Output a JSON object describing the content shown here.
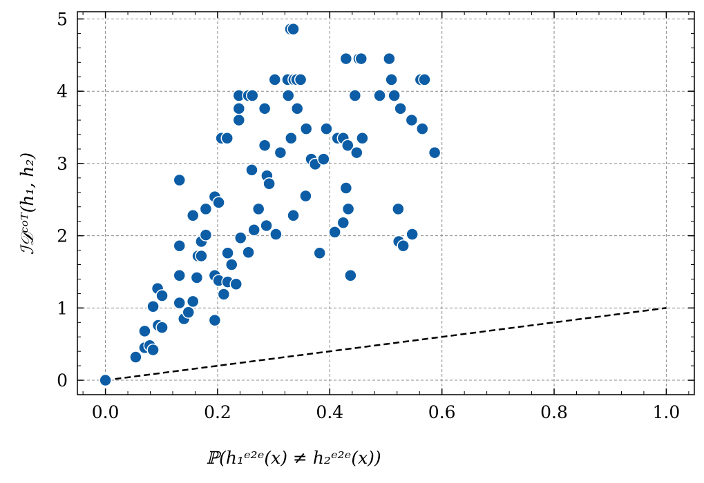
{
  "chart_data": {
    "type": "scatter",
    "title": "",
    "xlabel": "ℙ(h₁ᵉ²ᵉ(x) ≠ h₂ᵉ²ᵉ(x))",
    "ylabel": "ℐ𝒟ᶜᵒᵀ(h₁, h₂)",
    "xlim": [
      -0.05,
      1.05
    ],
    "ylim": [
      -0.2,
      5.1
    ],
    "xticks": [
      "0.0",
      "0.2",
      "0.4",
      "0.6",
      "0.8",
      "1.0"
    ],
    "yticks": [
      "0",
      "1",
      "2",
      "3",
      "4",
      "5"
    ],
    "grid": true,
    "point_color": "#0C5DA5",
    "reference_line": {
      "style": "dashed",
      "color": "#000000",
      "x": [
        0,
        1
      ],
      "y": [
        0,
        1
      ]
    },
    "points": [
      [
        0.0,
        0.0
      ],
      [
        0.054,
        0.32
      ],
      [
        0.07,
        0.68
      ],
      [
        0.07,
        0.45
      ],
      [
        0.079,
        0.48
      ],
      [
        0.085,
        0.42
      ],
      [
        0.085,
        1.02
      ],
      [
        0.093,
        1.27
      ],
      [
        0.094,
        0.76
      ],
      [
        0.101,
        0.73
      ],
      [
        0.101,
        1.17
      ],
      [
        0.132,
        2.77
      ],
      [
        0.132,
        1.86
      ],
      [
        0.132,
        1.45
      ],
      [
        0.132,
        1.07
      ],
      [
        0.14,
        0.85
      ],
      [
        0.148,
        0.94
      ],
      [
        0.156,
        1.09
      ],
      [
        0.156,
        2.28
      ],
      [
        0.163,
        1.42
      ],
      [
        0.165,
        1.72
      ],
      [
        0.171,
        1.72
      ],
      [
        0.171,
        1.92
      ],
      [
        0.179,
        2.37
      ],
      [
        0.179,
        2.01
      ],
      [
        0.195,
        0.83
      ],
      [
        0.195,
        1.45
      ],
      [
        0.195,
        2.54
      ],
      [
        0.202,
        2.46
      ],
      [
        0.202,
        1.38
      ],
      [
        0.207,
        3.35
      ],
      [
        0.211,
        1.19
      ],
      [
        0.217,
        3.35
      ],
      [
        0.218,
        1.76
      ],
      [
        0.218,
        1.36
      ],
      [
        0.225,
        1.6
      ],
      [
        0.233,
        1.33
      ],
      [
        0.238,
        3.94
      ],
      [
        0.238,
        3.76
      ],
      [
        0.238,
        3.6
      ],
      [
        0.241,
        1.97
      ],
      [
        0.255,
        1.77
      ],
      [
        0.255,
        3.94
      ],
      [
        0.262,
        3.94
      ],
      [
        0.261,
        2.91
      ],
      [
        0.265,
        2.08
      ],
      [
        0.273,
        2.37
      ],
      [
        0.284,
        3.76
      ],
      [
        0.284,
        3.25
      ],
      [
        0.287,
        2.14
      ],
      [
        0.288,
        2.83
      ],
      [
        0.292,
        2.72
      ],
      [
        0.302,
        4.16
      ],
      [
        0.304,
        2.02
      ],
      [
        0.312,
        3.15
      ],
      [
        0.325,
        4.16
      ],
      [
        0.326,
        3.94
      ],
      [
        0.331,
        3.35
      ],
      [
        0.33,
        4.86
      ],
      [
        0.335,
        4.86
      ],
      [
        0.335,
        2.28
      ],
      [
        0.336,
        4.16
      ],
      [
        0.341,
        4.16
      ],
      [
        0.342,
        3.76
      ],
      [
        0.348,
        4.16
      ],
      [
        0.357,
        2.55
      ],
      [
        0.358,
        3.48
      ],
      [
        0.367,
        3.06
      ],
      [
        0.374,
        2.99
      ],
      [
        0.382,
        1.76
      ],
      [
        0.389,
        3.06
      ],
      [
        0.394,
        3.48
      ],
      [
        0.409,
        2.05
      ],
      [
        0.414,
        3.35
      ],
      [
        0.424,
        3.35
      ],
      [
        0.424,
        2.18
      ],
      [
        0.429,
        4.45
      ],
      [
        0.429,
        2.66
      ],
      [
        0.432,
        3.25
      ],
      [
        0.433,
        2.37
      ],
      [
        0.437,
        1.45
      ],
      [
        0.445,
        3.94
      ],
      [
        0.448,
        3.15
      ],
      [
        0.452,
        4.45
      ],
      [
        0.456,
        4.45
      ],
      [
        0.458,
        3.35
      ],
      [
        0.489,
        3.94
      ],
      [
        0.506,
        4.45
      ],
      [
        0.51,
        4.16
      ],
      [
        0.515,
        3.94
      ],
      [
        0.522,
        2.37
      ],
      [
        0.523,
        1.92
      ],
      [
        0.526,
        3.76
      ],
      [
        0.531,
        1.86
      ],
      [
        0.546,
        3.6
      ],
      [
        0.547,
        2.02
      ],
      [
        0.562,
        4.16
      ],
      [
        0.569,
        4.16
      ],
      [
        0.565,
        3.48
      ],
      [
        0.587,
        3.15
      ]
    ]
  }
}
